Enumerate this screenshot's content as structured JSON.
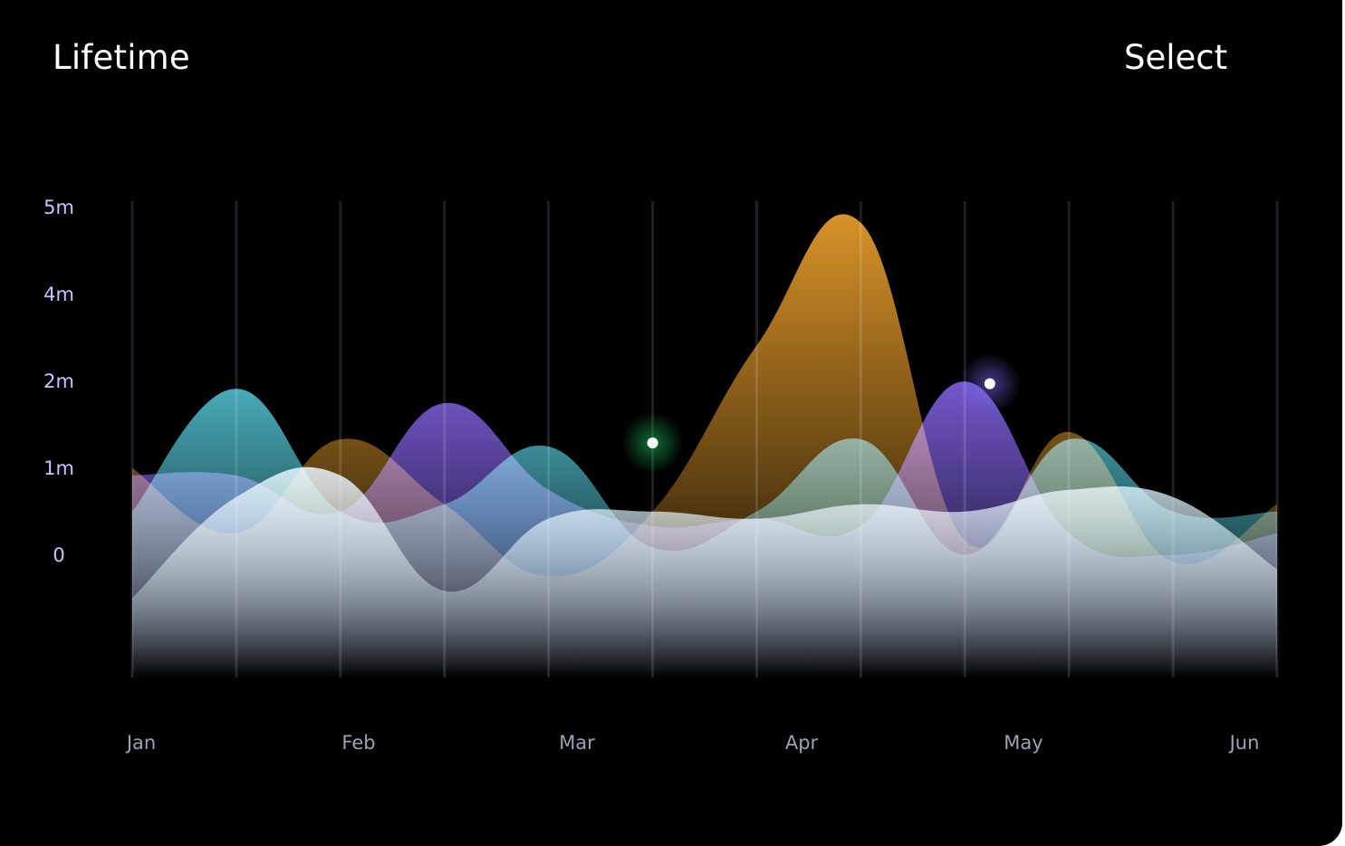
{
  "header": {
    "title": "Lifetime",
    "select_label": "Select"
  },
  "chart_data": {
    "type": "area",
    "title": "Lifetime",
    "xlabel": "",
    "ylabel": "",
    "y_tick_labels": [
      "0",
      "1m",
      "2m",
      "4m",
      "5m"
    ],
    "x_tick_labels": [
      "Jan",
      "Feb",
      "Mar",
      "Apr",
      "May",
      "Jun"
    ],
    "x": [
      0,
      0.5,
      1,
      1.5,
      2,
      2.5,
      3,
      3.5,
      4,
      4.5,
      5,
      5.5
    ],
    "ylim": [
      -1.4,
      5.2
    ],
    "grid": {
      "vertical": true,
      "horizontal": false
    },
    "legend": "none",
    "series": [
      {
        "color": "#e39a2a",
        "values": [
          1.5,
          0.6,
          1.9,
          1.0,
          0.0,
          0.9,
          3.2,
          4.9,
          0.5,
          2.0,
          0.2,
          1.0
        ]
      },
      {
        "color": "#7a5cd6",
        "values": [
          1.4,
          1.4,
          0.9,
          2.4,
          1.2,
          0.7,
          0.8,
          0.7,
          2.7,
          0.6,
          0.3,
          0.6
        ]
      },
      {
        "color": "#4cb4c3",
        "values": [
          0.9,
          2.6,
          0.9,
          1.0,
          1.8,
          0.4,
          0.9,
          1.9,
          0.3,
          1.9,
          0.9,
          0.9
        ]
      },
      {
        "color": "#c8dde6",
        "values": [
          -0.3,
          1.1,
          1.4,
          -0.2,
          0.8,
          0.9,
          0.8,
          1.0,
          0.9,
          1.2,
          1.1,
          0.1
        ]
      }
    ],
    "highlights": [
      {
        "x": 2.5,
        "y": 1.85,
        "glow_color": "#22c55e"
      },
      {
        "x": 4.12,
        "y": 2.67,
        "glow_color": "#7c6cff"
      }
    ]
  }
}
